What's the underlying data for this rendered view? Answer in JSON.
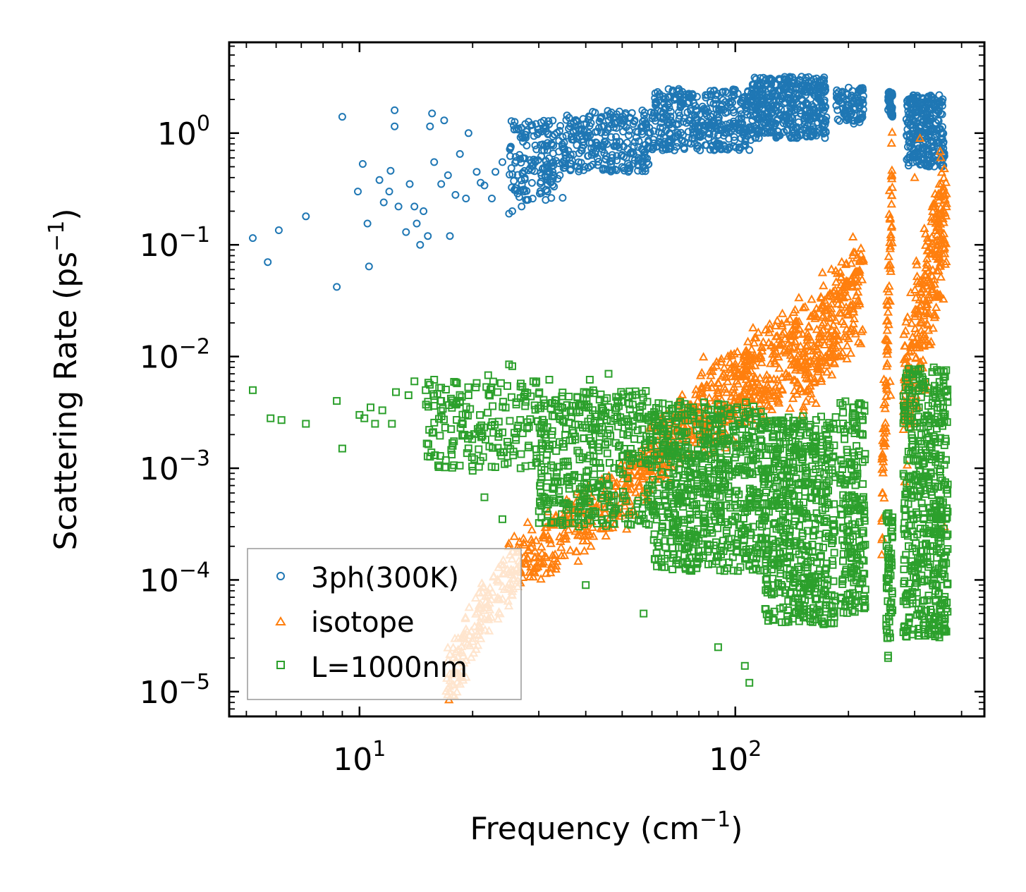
{
  "chart_data": {
    "type": "scatter",
    "xscale": "log",
    "yscale": "log",
    "xlim": [
      4.5,
      460
    ],
    "ylim": [
      6e-06,
      6.5
    ],
    "xlabel": {
      "main": "Frequency (cm",
      "sup": "−1",
      "end": ")"
    },
    "ylabel": {
      "main": "Scattering Rate (ps",
      "sup": "−1",
      "end": ")"
    },
    "x_ticks": [
      {
        "value": 10,
        "base": "10",
        "exp": "1"
      },
      {
        "value": 100,
        "base": "10",
        "exp": "2"
      }
    ],
    "y_ticks": [
      {
        "value": 1,
        "base": "10",
        "exp": "0"
      },
      {
        "value": 0.1,
        "base": "10",
        "exp": "−1"
      },
      {
        "value": 0.01,
        "base": "10",
        "exp": "−2"
      },
      {
        "value": 0.001,
        "base": "10",
        "exp": "−3"
      },
      {
        "value": 0.0001,
        "base": "10",
        "exp": "−4"
      },
      {
        "value": 1e-05,
        "base": "10",
        "exp": "−5"
      }
    ],
    "legend_position": "lower-left",
    "series": [
      {
        "name": "3ph(300K)",
        "marker": "circle",
        "color": "#1f77b4",
        "description": "dense band rising from ~0.3-1 ps^-1 at 25 cm^-1 to ~2-3 ps^-1 near 150-200 cm^-1; sparse scatter below 25 cm^-1",
        "points": [
          [
            5.2,
            0.115
          ],
          [
            5.7,
            0.07
          ],
          [
            6.1,
            0.135
          ],
          [
            7.2,
            0.18
          ],
          [
            8.7,
            0.042
          ],
          [
            9.0,
            1.4
          ],
          [
            9.9,
            0.3
          ],
          [
            10.2,
            0.53
          ],
          [
            10.5,
            0.155
          ],
          [
            10.6,
            0.064
          ],
          [
            11.3,
            0.38
          ],
          [
            11.6,
            0.24
          ],
          [
            12.0,
            0.3
          ],
          [
            12.1,
            0.46
          ],
          [
            12.4,
            1.15
          ],
          [
            12.4,
            1.6
          ],
          [
            12.7,
            0.22
          ],
          [
            13.3,
            0.13
          ],
          [
            13.6,
            0.35
          ],
          [
            14.0,
            0.22
          ],
          [
            14.2,
            0.155
          ],
          [
            14.5,
            0.1
          ],
          [
            14.8,
            0.2
          ],
          [
            15.2,
            0.12
          ],
          [
            15.4,
            1.15
          ],
          [
            15.6,
            1.5
          ],
          [
            15.8,
            0.55
          ],
          [
            16.5,
            0.35
          ],
          [
            16.8,
            1.3
          ],
          [
            17.2,
            0.42
          ],
          [
            17.4,
            0.12
          ],
          [
            18.0,
            0.28
          ],
          [
            18.5,
            0.65
          ],
          [
            19.2,
            0.26
          ],
          [
            19.5,
            1.0
          ],
          [
            20.5,
            0.45
          ],
          [
            21.0,
            0.36
          ],
          [
            21.5,
            0.34
          ],
          [
            22.5,
            0.26
          ],
          [
            23.0,
            0.45
          ],
          [
            24.0,
            0.55
          ],
          [
            25.0,
            0.19
          ],
          [
            25.5,
            0.2
          ],
          [
            27.0,
            0.22
          ],
          [
            27.5,
            0.3
          ]
        ],
        "bands": [
          {
            "x": [
              25,
              35
            ],
            "y": [
              0.25,
              1.3
            ],
            "n": 170
          },
          {
            "x": [
              35,
              60
            ],
            "y": [
              0.45,
              1.6
            ],
            "n": 260
          },
          {
            "x": [
              60,
              110
            ],
            "y": [
              0.7,
              2.5
            ],
            "n": 380
          },
          {
            "x": [
              110,
              175
            ],
            "y": [
              0.9,
              3.2
            ],
            "n": 420
          },
          {
            "x": [
              185,
              220
            ],
            "y": [
              1.2,
              2.6
            ],
            "n": 90
          },
          {
            "x": [
              255,
              262
            ],
            "y": [
              1.4,
              2.4
            ],
            "n": 40
          },
          {
            "x": [
              285,
              360
            ],
            "y": [
              0.5,
              2.2
            ],
            "n": 280
          }
        ]
      },
      {
        "name": "isotope",
        "marker": "triangle",
        "color": "#ff7f0e",
        "description": "scales steeply with frequency: ~1e-5 ps^-1 at 17 cm^-1 to ~1e-2 at 150 cm^-1, with peaks ~1 ps^-1 near 320 cm^-1",
        "points": [
          [
            255,
            0.025
          ],
          [
            258,
            0.006
          ],
          [
            259,
            0.0045
          ],
          [
            300,
            0.4
          ],
          [
            310,
            0.9
          ],
          [
            320,
            0.005
          ],
          [
            360,
            0.0003
          ]
        ],
        "bands": [
          {
            "x": [
              17,
              25
            ],
            "y_trend": [
              1.2e-05,
              0.00012
            ],
            "spread": 0.35,
            "n": 140
          },
          {
            "x": [
              25,
              50
            ],
            "y_trend": [
              0.00012,
              0.0006
            ],
            "spread": 0.35,
            "n": 220
          },
          {
            "x": [
              50,
              80
            ],
            "y_trend": [
              0.0006,
              0.003
            ],
            "spread": 0.4,
            "n": 220
          },
          {
            "x": [
              80,
              150
            ],
            "y_trend": [
              0.003,
              0.012
            ],
            "spread": 0.5,
            "n": 380
          },
          {
            "x": [
              150,
              220
            ],
            "y_trend": [
              0.008,
              0.05
            ],
            "spread": 0.6,
            "n": 260
          },
          {
            "x": [
              245,
              262
            ],
            "y_trend": [
              0.0003,
              0.6
            ],
            "spread": 0.7,
            "n": 90
          },
          {
            "x": [
              280,
              365
            ],
            "y_trend": [
              0.004,
              0.2
            ],
            "spread": 0.8,
            "n": 280
          }
        ]
      },
      {
        "name": "L=1000nm",
        "marker": "square",
        "color": "#2ca02c",
        "description": "boundary scattering around 1e-3 to 5e-3 ps^-1, spreading down to ~1e-5 at high frequency",
        "points": [
          [
            5.2,
            0.005
          ],
          [
            5.8,
            0.0028
          ],
          [
            6.2,
            0.0027
          ],
          [
            7.2,
            0.0025
          ],
          [
            8.7,
            0.004
          ],
          [
            9.0,
            0.0015
          ],
          [
            10.0,
            0.003
          ],
          [
            10.3,
            0.0028
          ],
          [
            10.7,
            0.0035
          ],
          [
            11.0,
            0.0025
          ],
          [
            11.5,
            0.0033
          ],
          [
            12.2,
            0.0025
          ],
          [
            12.5,
            0.0048
          ],
          [
            13.5,
            0.0045
          ],
          [
            14.0,
            0.006
          ],
          [
            15.0,
            0.005
          ],
          [
            15.8,
            0.0062
          ],
          [
            16.5,
            0.004
          ],
          [
            17.5,
            0.0042
          ],
          [
            19.5,
            0.0045
          ],
          [
            20.0,
            0.00095
          ],
          [
            21.5,
            0.00055
          ],
          [
            22.0,
            0.0068
          ],
          [
            24.0,
            0.00035
          ],
          [
            25.0,
            0.0085
          ],
          [
            25.5,
            0.0082
          ],
          [
            29.0,
            0.006
          ],
          [
            32.0,
            0.0062
          ],
          [
            41.0,
            0.0062
          ],
          [
            46.0,
            0.007
          ],
          [
            40.0,
            9e-05
          ],
          [
            57.0,
            5e-05
          ],
          [
            90.0,
            2.5e-05
          ],
          [
            106.0,
            1.7e-05
          ],
          [
            109.0,
            1.2e-05
          ],
          [
            255,
            2e-05
          ],
          [
            255,
            2.1e-05
          ]
        ],
        "bands": [
          {
            "x": [
              15,
              30
            ],
            "y": [
              0.001,
              0.006
            ],
            "n": 180
          },
          {
            "x": [
              30,
              60
            ],
            "y": [
              0.0003,
              0.005
            ],
            "n": 420
          },
          {
            "x": [
              60,
              120
            ],
            "y": [
              0.00012,
              0.004
            ],
            "n": 700
          },
          {
            "x": [
              120,
              185
            ],
            "y": [
              4e-05,
              0.003
            ],
            "n": 560
          },
          {
            "x": [
              190,
              222
            ],
            "y": [
              5e-05,
              0.004
            ],
            "n": 200
          },
          {
            "x": [
              252,
              262
            ],
            "y": [
              3e-05,
              0.0004
            ],
            "n": 60
          },
          {
            "x": [
              280,
              368
            ],
            "y": [
              3e-05,
              0.008
            ],
            "n": 520
          }
        ]
      }
    ]
  }
}
